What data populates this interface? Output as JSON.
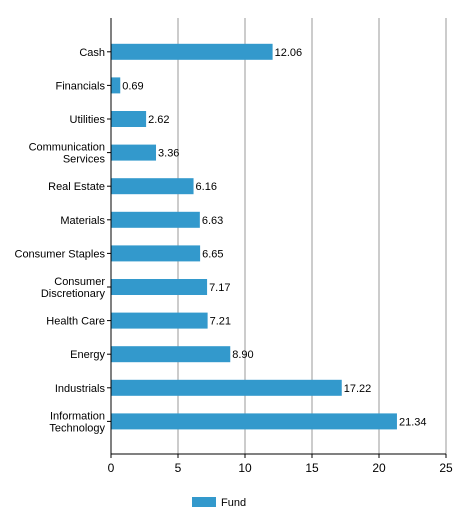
{
  "chart_data": {
    "type": "bar",
    "orientation": "horizontal",
    "categories": [
      "Cash",
      "Financials",
      "Utilities",
      "Communication Services",
      "Real Estate",
      "Materials",
      "Consumer Staples",
      "Consumer Discretionary",
      "Health Care",
      "Energy",
      "Industrials",
      "Information Technology"
    ],
    "category_lines": [
      [
        "Cash"
      ],
      [
        "Financials"
      ],
      [
        "Utilities"
      ],
      [
        "Communication",
        "Services"
      ],
      [
        "Real Estate"
      ],
      [
        "Materials"
      ],
      [
        "Consumer Staples"
      ],
      [
        "Consumer",
        "Discretionary"
      ],
      [
        "Health Care"
      ],
      [
        "Energy"
      ],
      [
        "Industrials"
      ],
      [
        "Information",
        "Technology"
      ]
    ],
    "series": [
      {
        "name": "Fund",
        "values": [
          12.06,
          0.69,
          2.62,
          3.36,
          6.16,
          6.63,
          6.65,
          7.17,
          7.21,
          8.9,
          17.22,
          21.34
        ],
        "value_labels": [
          "12.06",
          "0.69",
          "2.62",
          "3.36",
          "6.16",
          "6.63",
          "6.65",
          "7.17",
          "7.21",
          "8.90",
          "17.22",
          "21.34"
        ],
        "color": "#3399cc"
      }
    ],
    "title": "",
    "xlabel": "",
    "ylabel": "",
    "xlim": [
      0,
      25
    ],
    "xticks": [
      0,
      5,
      10,
      15,
      20,
      25
    ],
    "grid": "vertical",
    "grid_color": "#999999",
    "legend_position": "bottom-center"
  }
}
